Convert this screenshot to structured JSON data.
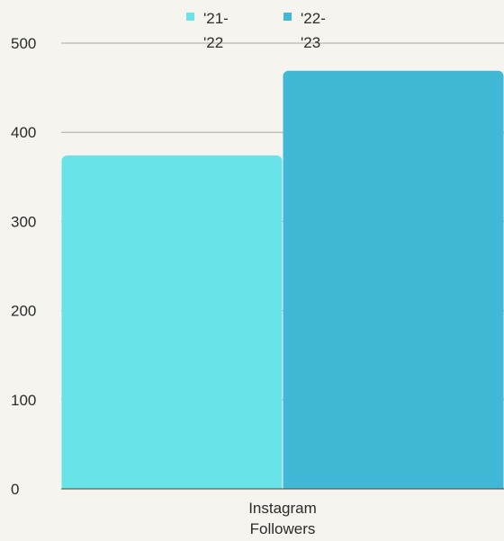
{
  "chart_data": {
    "type": "bar",
    "categories": [
      "Instagram\nFollowers"
    ],
    "series": [
      {
        "name": "'21-\n'22",
        "values": [
          374
        ],
        "color": "#68e4e8"
      },
      {
        "name": "'22-\n'23",
        "values": [
          469
        ],
        "color": "#41b8d6"
      }
    ],
    "ylim": [
      0,
      500
    ],
    "yticks": [
      0,
      100,
      200,
      300,
      400,
      500
    ],
    "grid": true,
    "legend_position": "top",
    "title": "",
    "xlabel": "",
    "ylabel": ""
  }
}
